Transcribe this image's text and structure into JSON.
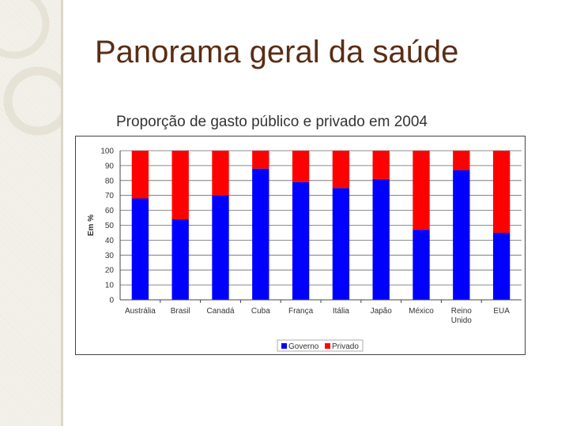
{
  "slide": {
    "title": "Panorama geral da saúde"
  },
  "chart_data": {
    "type": "bar",
    "stacked": true,
    "title": "Proporção de gasto público e privado em 2004",
    "xlabel": "",
    "ylabel": "Em %",
    "ylim": [
      0,
      100
    ],
    "yticks": [
      0,
      10,
      20,
      30,
      40,
      50,
      60,
      70,
      80,
      90,
      100
    ],
    "grid": true,
    "legend_position": "bottom",
    "categories": [
      "Austrália",
      "Brasil",
      "Canadá",
      "Cuba",
      "França",
      "Itália",
      "Japão",
      "México",
      "Reino Unido",
      "EUA"
    ],
    "series": [
      {
        "name": "Governo",
        "color": "#0000ff",
        "values": [
          68,
          54,
          70,
          88,
          79,
          75,
          81,
          47,
          87,
          45
        ]
      },
      {
        "name": "Privado",
        "color": "#ff0000",
        "values": [
          32,
          46,
          30,
          12,
          21,
          25,
          19,
          53,
          13,
          55
        ]
      }
    ]
  }
}
